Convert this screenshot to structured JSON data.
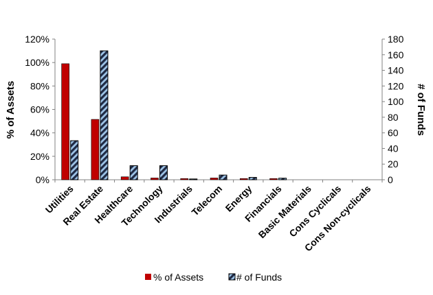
{
  "chart_data": {
    "type": "bar",
    "categories": [
      "Utilities",
      "Real Estate",
      "Healthcare",
      "Technology",
      "Industrials",
      "Telecom",
      "Energy",
      "Financials",
      "Basic Materials",
      "Cons Cyclicals",
      "Cons Non-cyclicals"
    ],
    "series": [
      {
        "name": "% of Assets",
        "axis": "left",
        "values": [
          99,
          51.5,
          2.5,
          1.5,
          1,
          1.5,
          1,
          1,
          0,
          0,
          0
        ]
      },
      {
        "name": "# of Funds",
        "axis": "right",
        "values": [
          50,
          165,
          18,
          18,
          1,
          6,
          3,
          2,
          0,
          0,
          0
        ]
      }
    ],
    "ylabel": "% of Assets",
    "y2label": "# of Funds",
    "ylim": [
      0,
      120
    ],
    "y2lim": [
      0,
      180
    ],
    "yticks": [
      "0%",
      "20%",
      "40%",
      "60%",
      "80%",
      "100%",
      "120%"
    ],
    "y2ticks": [
      "0",
      "20",
      "40",
      "60",
      "80",
      "100",
      "120",
      "140",
      "160",
      "180"
    ],
    "legend_position": "bottom",
    "grid": false,
    "colors": {
      "assets": "#c00000",
      "funds_fill": "#9dc3e6",
      "funds_stripe": "#1f2a44"
    }
  }
}
